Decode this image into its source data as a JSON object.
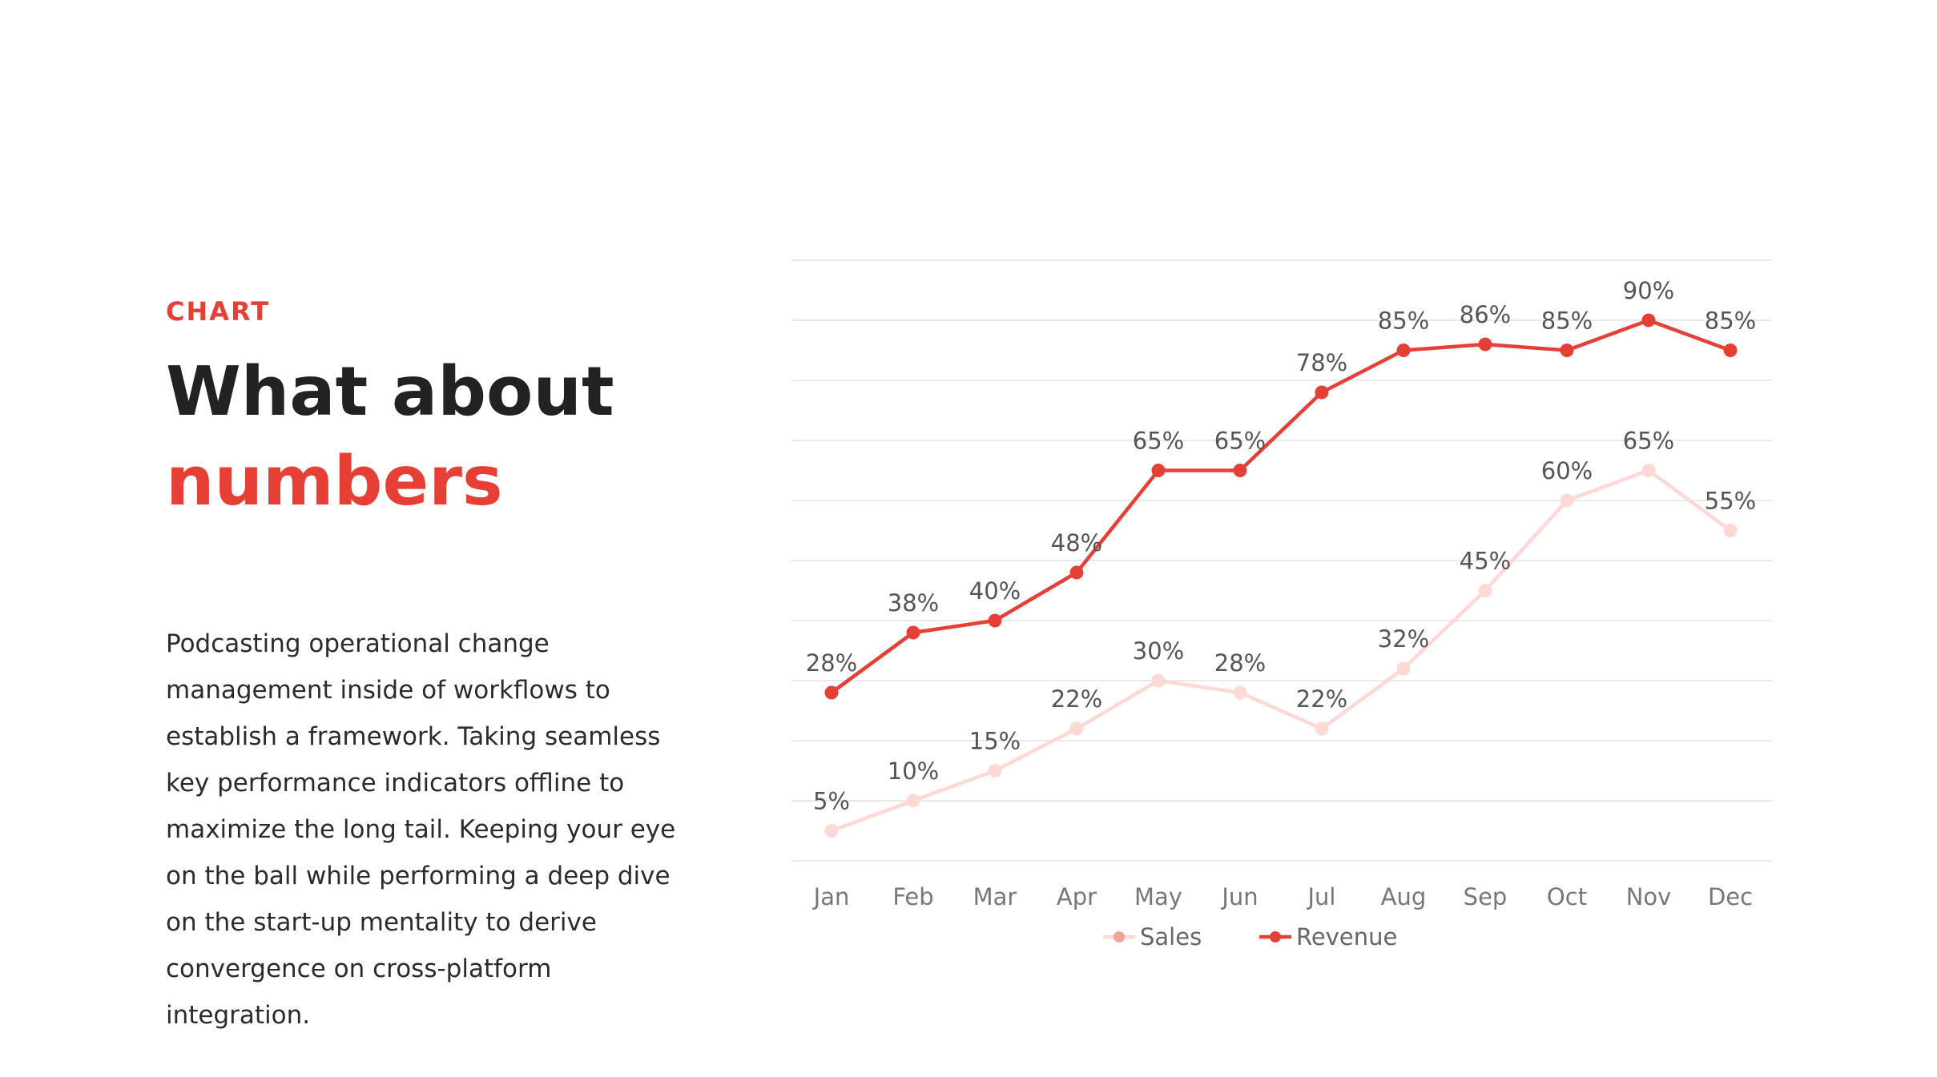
{
  "header": {
    "eyebrow": "CHART",
    "title_line1": "What about",
    "title_line2": "numbers"
  },
  "body": {
    "text": "Podcasting operational change management inside of workflows to establish a framework. Taking seamless key performance indicators offline to maximize the long tail. Keeping your eye on the ball while performing a deep dive on the start-up mentality to derive convergence on cross-platform integration."
  },
  "colors": {
    "accent": "#e63f35",
    "sales": "#fcd9d5",
    "revenue": "#e63f35",
    "grid": "#e3e3e3",
    "label": "#555555"
  },
  "chart_data": {
    "type": "line",
    "categories": [
      "Jan",
      "Feb",
      "Mar",
      "Apr",
      "May",
      "Jun",
      "Jul",
      "Aug",
      "Sep",
      "Oct",
      "Nov",
      "Dec"
    ],
    "series": [
      {
        "name": "Sales",
        "values": [
          5,
          10,
          15,
          22,
          30,
          28,
          22,
          32,
          45,
          60,
          65,
          55
        ],
        "labels": [
          "5%",
          "10%",
          "15%",
          "22%",
          "30%",
          "28%",
          "22%",
          "32%",
          "45%",
          "60%",
          "65%",
          "55%"
        ]
      },
      {
        "name": "Revenue",
        "values": [
          28,
          38,
          40,
          48,
          65,
          65,
          78,
          85,
          86,
          85,
          90,
          85
        ],
        "labels": [
          "28%",
          "38%",
          "40%",
          "48%",
          "65%",
          "65%",
          "78%",
          "85%",
          "86%",
          "85%",
          "90%",
          "85%"
        ]
      }
    ],
    "ylim": [
      0,
      100
    ],
    "grid": true,
    "legend": "bottom-center"
  }
}
